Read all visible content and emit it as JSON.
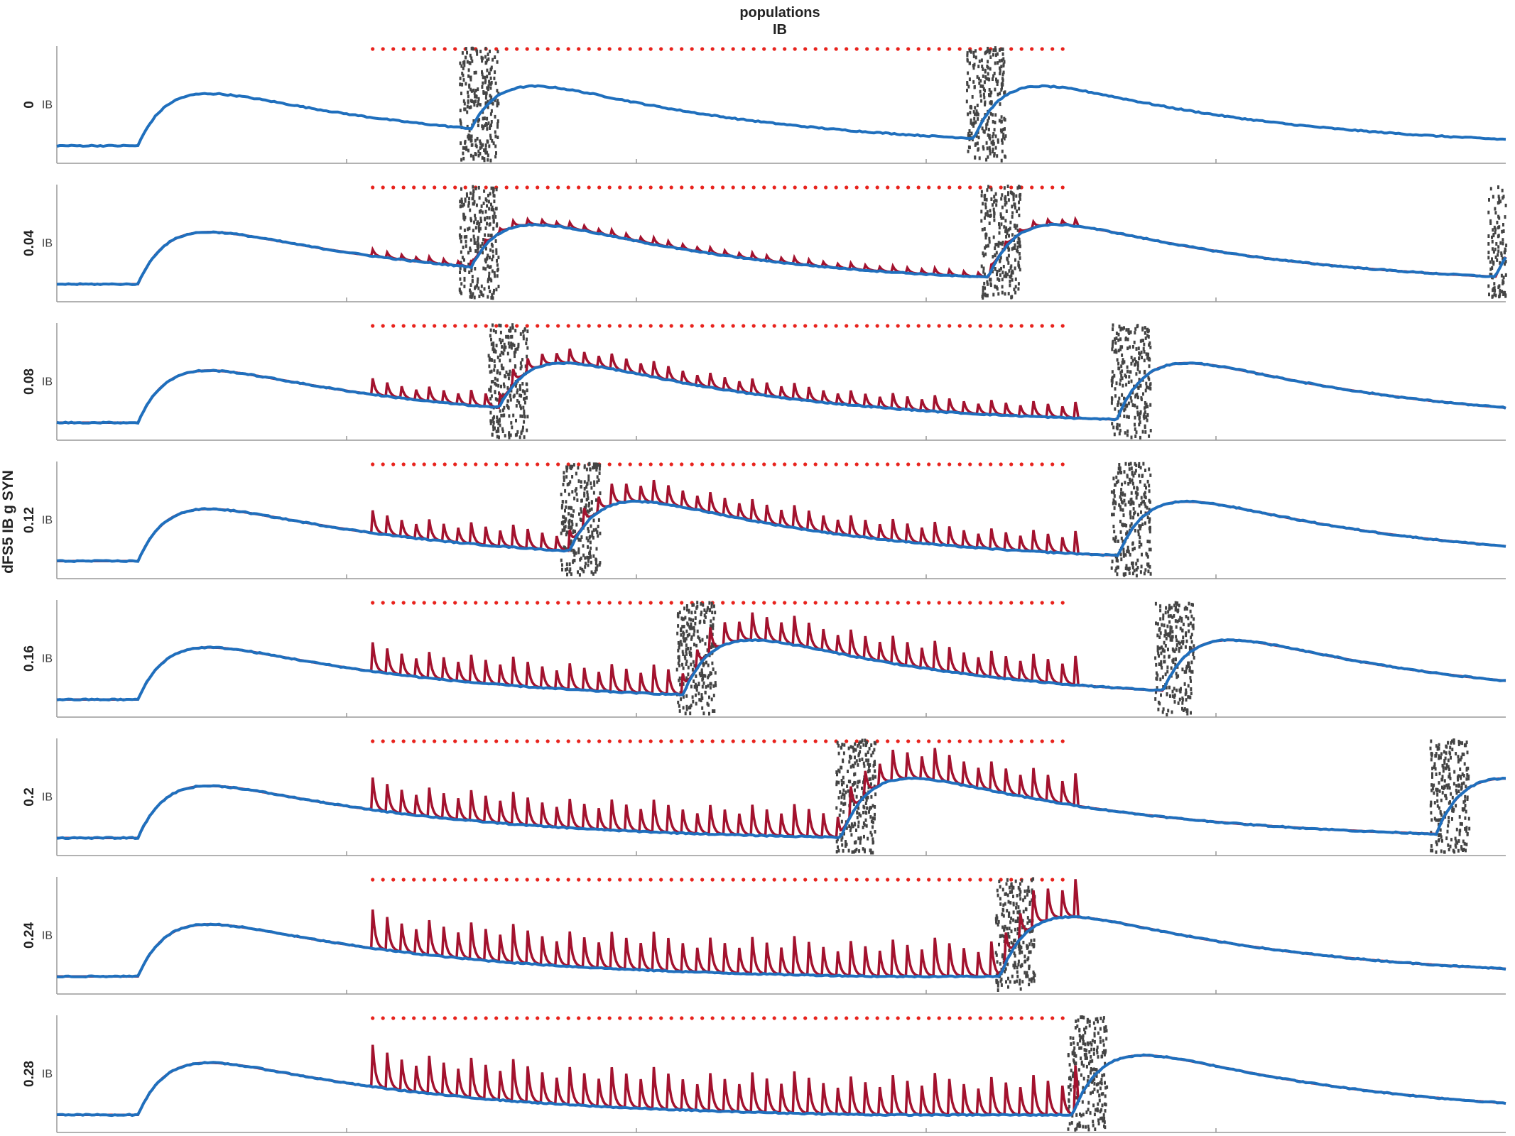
{
  "figure": {
    "title_line1": "populations",
    "title_line2": "IB",
    "ylabel": "dFS5 IB g SYN"
  },
  "colors": {
    "blue_trace": "#1f6fbd",
    "red_trace": "#a3122e",
    "raster": "#444444",
    "stim_dots": "#e8231d",
    "axis": "#999999"
  },
  "chart_data": {
    "type": "line",
    "description_series": [
      "blue trace",
      "red trace"
    ],
    "grid": false,
    "rows": [
      {
        "label": "0",
        "ytick": "IB",
        "red_amp": 0.0
      },
      {
        "label": "0.04",
        "ytick": "IB",
        "red_amp": 0.1
      },
      {
        "label": "0.08",
        "ytick": "IB",
        "red_amp": 0.25
      },
      {
        "label": "0.12",
        "ytick": "IB",
        "red_amp": 0.35
      },
      {
        "label": "0.16",
        "ytick": "IB",
        "red_amp": 0.45
      },
      {
        "label": "0.2",
        "ytick": "IB",
        "red_amp": 0.5
      },
      {
        "label": "0.24",
        "ytick": "IB",
        "red_amp": 0.6
      },
      {
        "label": "0.28",
        "ytick": "IB",
        "red_amp": 0.65
      }
    ],
    "burst_positions": [
      [
        0.28,
        0.63
      ],
      [
        0.28,
        0.64,
        0.99
      ],
      [
        0.3,
        0.73
      ],
      [
        0.35,
        0.73
      ],
      [
        0.43,
        0.76
      ],
      [
        0.54,
        0.95
      ],
      [
        0.65
      ],
      [
        0.7
      ]
    ]
  }
}
